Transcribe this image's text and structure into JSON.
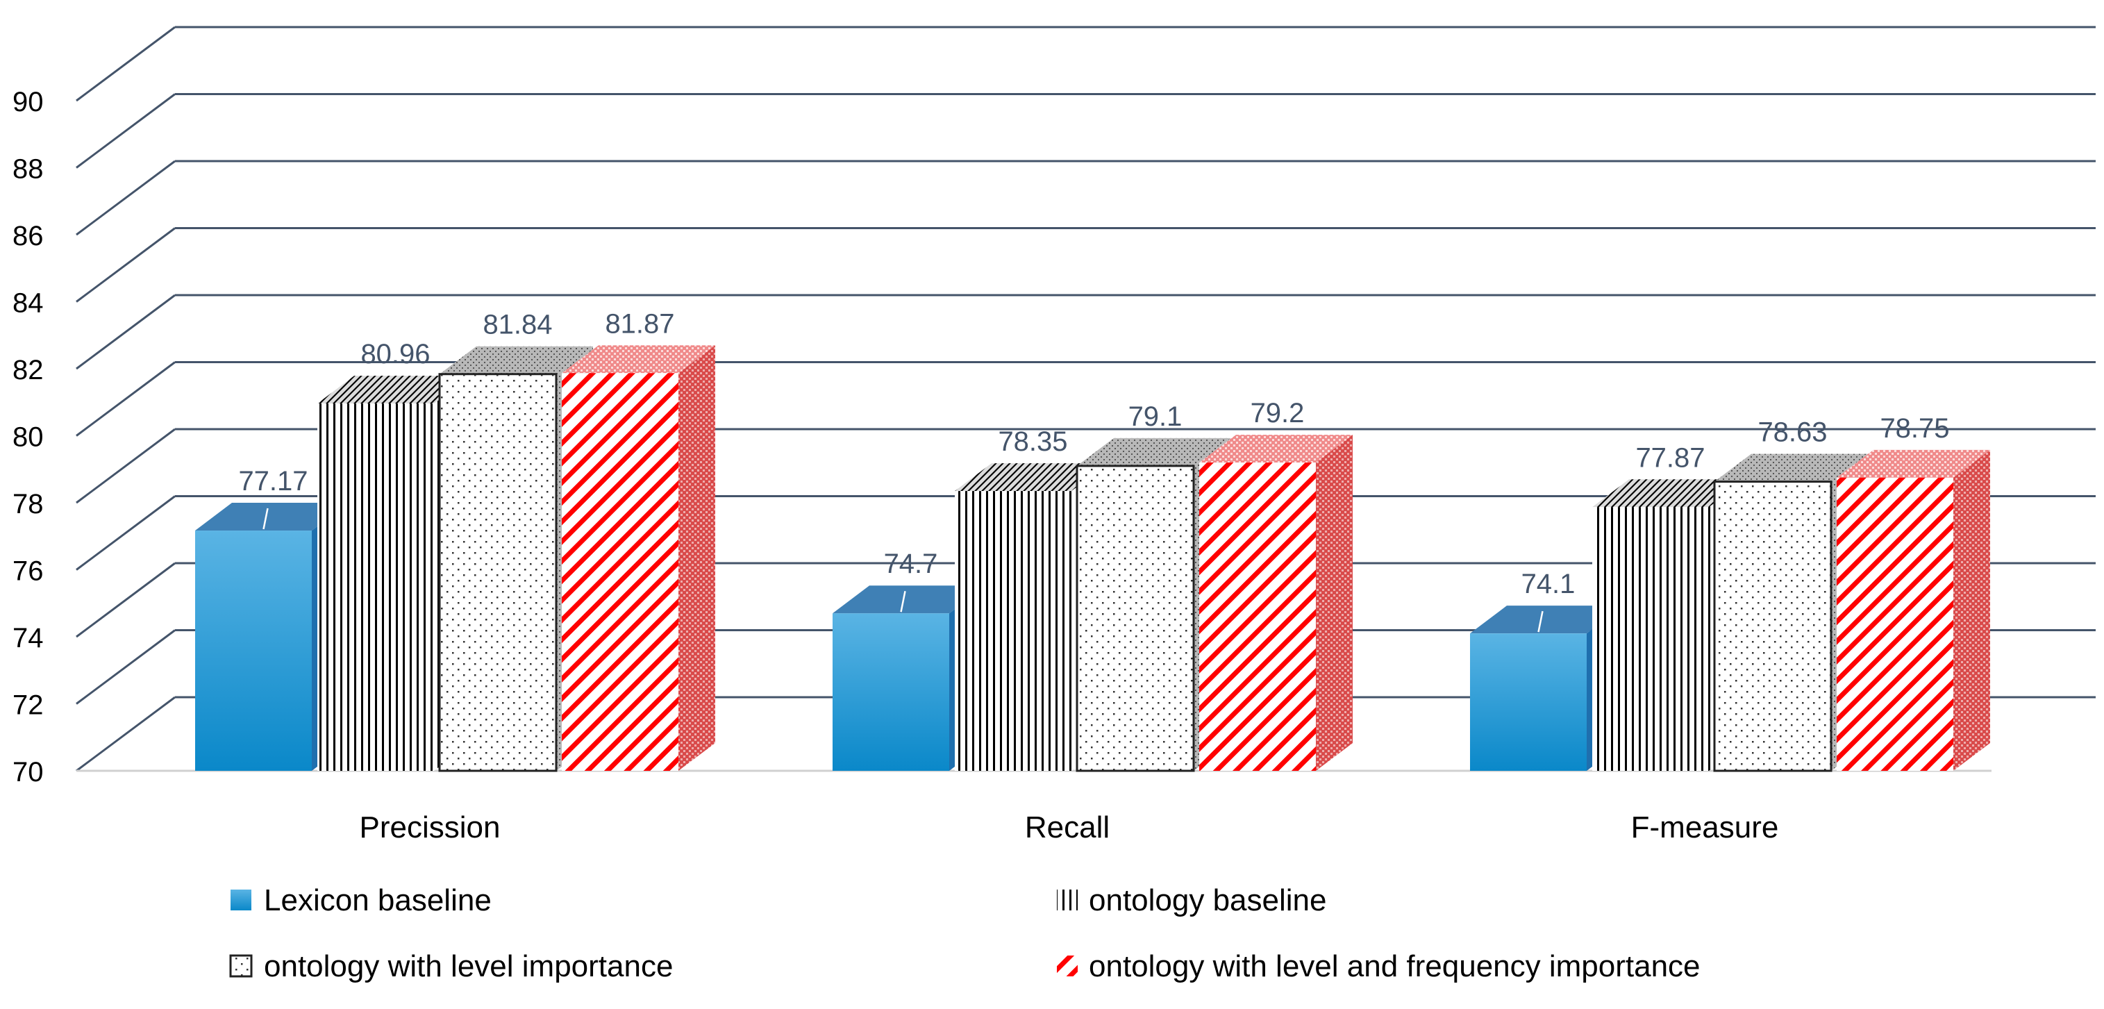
{
  "chart_data": {
    "type": "bar",
    "title": "",
    "xlabel": "",
    "ylabel": "",
    "ylim": [
      70,
      90
    ],
    "yticks": [
      "70",
      "72",
      "74",
      "76",
      "78",
      "80",
      "82",
      "84",
      "86",
      "88",
      "90"
    ],
    "categories": [
      "Precission",
      "Recall",
      "F-measure"
    ],
    "series": [
      {
        "name": "Lexicon baseline",
        "values": [
          77.17,
          74.7,
          74.1
        ],
        "labels": [
          "77.17",
          "74.7",
          "74.1"
        ],
        "pattern": "solid-blue",
        "color": "#1f9ad6"
      },
      {
        "name": "ontology baseline",
        "values": [
          80.96,
          78.35,
          77.87
        ],
        "labels": [
          "80.96",
          "78.35",
          "77.87"
        ],
        "pattern": "vertical-lines",
        "color": "#000000"
      },
      {
        "name": "ontology with level importance",
        "values": [
          81.84,
          79.1,
          78.63
        ],
        "labels": [
          "81.84",
          "79.1",
          "78.63"
        ],
        "pattern": "dots",
        "color": "#000000"
      },
      {
        "name": "ontology with level and frequency importance",
        "values": [
          81.87,
          79.2,
          78.75
        ],
        "labels": [
          "81.87",
          "79.2",
          "78.75"
        ],
        "pattern": "diagonal-red",
        "color": "#ff0000"
      }
    ],
    "legend_position": "bottom",
    "grid": true
  },
  "colors": {
    "gridline": "#44546a",
    "label_text": "#44546a",
    "axis_text": "#000000",
    "blue_top": "#5ab4e4",
    "blue_bottom": "#0a88c9",
    "blue_cap": "#2e75b0",
    "red": "#ff0000"
  }
}
